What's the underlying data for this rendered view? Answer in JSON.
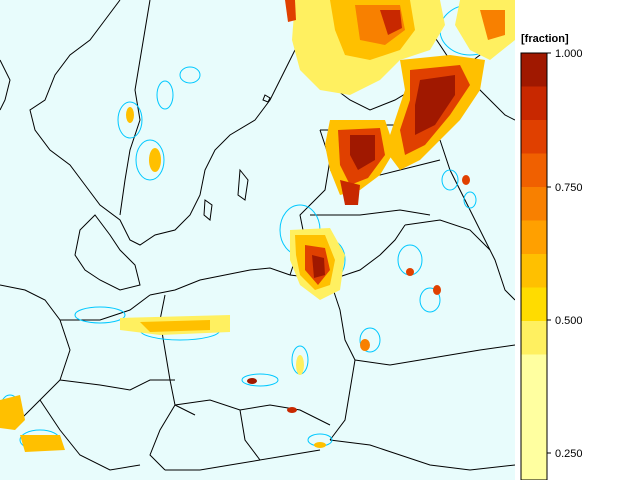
{
  "legend": {
    "title": "[fraction]",
    "tick_labels": [
      "1.000",
      "0.750",
      "0.500",
      "0.250"
    ],
    "bands": [
      {
        "to": 1.0,
        "color": "#a01800"
      },
      {
        "to": 0.95,
        "color": "#c82800"
      },
      {
        "to": 0.9,
        "color": "#e04000"
      },
      {
        "to": 0.85,
        "color": "#f06000"
      },
      {
        "to": 0.8,
        "color": "#f88000"
      },
      {
        "to": 0.75,
        "color": "#ffa000"
      },
      {
        "to": 0.7,
        "color": "#ffc000"
      },
      {
        "to": 0.65,
        "color": "#ffdc00"
      },
      {
        "to": 0.6,
        "color": "#fff060"
      },
      {
        "to": 0.55,
        "color": "#ffffa0"
      }
    ]
  },
  "map": {
    "background_color": "#e8fcfc",
    "contour_color": "#00c8ff",
    "border_color": "#000000"
  }
}
